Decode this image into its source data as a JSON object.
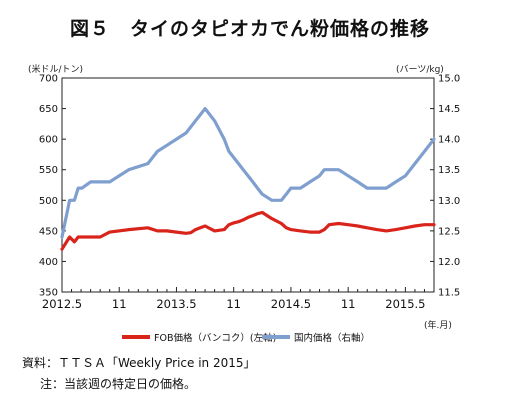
{
  "title": "図５　タイのタピオカでん粉価格の推移",
  "units": {
    "left": "(米ドル/トン)",
    "right": "(バーツ/kg)",
    "x": "(年.月)"
  },
  "source": "資料：ＴＴＳＡ「Weekly Price in 2015」",
  "note": "注：当該週の特定日の価格。",
  "colors": {
    "fob": "#d9241c",
    "domestic": "#7f9fcf"
  },
  "chart_data": {
    "type": "line",
    "x_ticks": [
      "2012.5",
      "11",
      "2013.5",
      "11",
      "2014.5",
      "11",
      "2015.5"
    ],
    "ylim_left": [
      350,
      700
    ],
    "yticks_left": [
      350,
      400,
      450,
      500,
      550,
      600,
      650,
      700
    ],
    "ylim_right": [
      11.5,
      15.0
    ],
    "yticks_right": [
      "11.5",
      "12.0",
      "12.5",
      "13.0",
      "13.5",
      "14.0",
      "14.5",
      "15.0"
    ],
    "grid": false,
    "legend_position": "bottom",
    "series": [
      {
        "name": "FOB価格（バンコク）(左軸)",
        "axis": "left",
        "x": [
          0,
          0.8,
          1.3,
          1.7,
          2.1,
          3,
          4,
          5,
          7,
          9,
          10,
          11,
          12,
          13,
          13.5,
          14,
          14.5,
          15,
          16,
          17,
          17.5,
          18,
          18.5,
          19,
          19.5,
          20,
          20.5,
          21,
          22,
          23,
          23.5,
          24,
          25,
          26,
          27,
          27.5,
          28,
          29,
          30,
          31,
          32,
          33,
          34,
          35,
          36,
          37,
          38,
          39
        ],
        "values": [
          420,
          440,
          432,
          440,
          440,
          440,
          440,
          448,
          452,
          455,
          450,
          450,
          448,
          446,
          447,
          452,
          455,
          458,
          450,
          452,
          460,
          463,
          465,
          468,
          472,
          475,
          478,
          480,
          470,
          462,
          455,
          452,
          450,
          448,
          448,
          452,
          460,
          462,
          460,
          458,
          455,
          452,
          450,
          452,
          455,
          458,
          460,
          460
        ]
      },
      {
        "name": "国内価格（右軸）",
        "axis": "right",
        "x": [
          0,
          0.8,
          1.3,
          1.7,
          2.1,
          3,
          4,
          5,
          7,
          9,
          10,
          11,
          12,
          13,
          13.5,
          14,
          14.5,
          15,
          16,
          17,
          17.5,
          18,
          18.5,
          19,
          19.5,
          20,
          20.5,
          21,
          22,
          23,
          23.5,
          24,
          25,
          26,
          27,
          27.5,
          28,
          29,
          30,
          31,
          32,
          33,
          34,
          35,
          36,
          37,
          38,
          39
        ],
        "values": [
          12.4,
          13.0,
          13.0,
          13.2,
          13.2,
          13.3,
          13.3,
          13.3,
          13.5,
          13.6,
          13.8,
          13.9,
          14.0,
          14.1,
          14.2,
          14.3,
          14.4,
          14.5,
          14.3,
          14.0,
          13.8,
          13.7,
          13.6,
          13.5,
          13.4,
          13.3,
          13.2,
          13.1,
          13.0,
          13.0,
          13.1,
          13.2,
          13.2,
          13.3,
          13.4,
          13.5,
          13.5,
          13.5,
          13.4,
          13.3,
          13.2,
          13.2,
          13.2,
          13.3,
          13.4,
          13.6,
          13.8,
          14.0
        ]
      }
    ]
  }
}
